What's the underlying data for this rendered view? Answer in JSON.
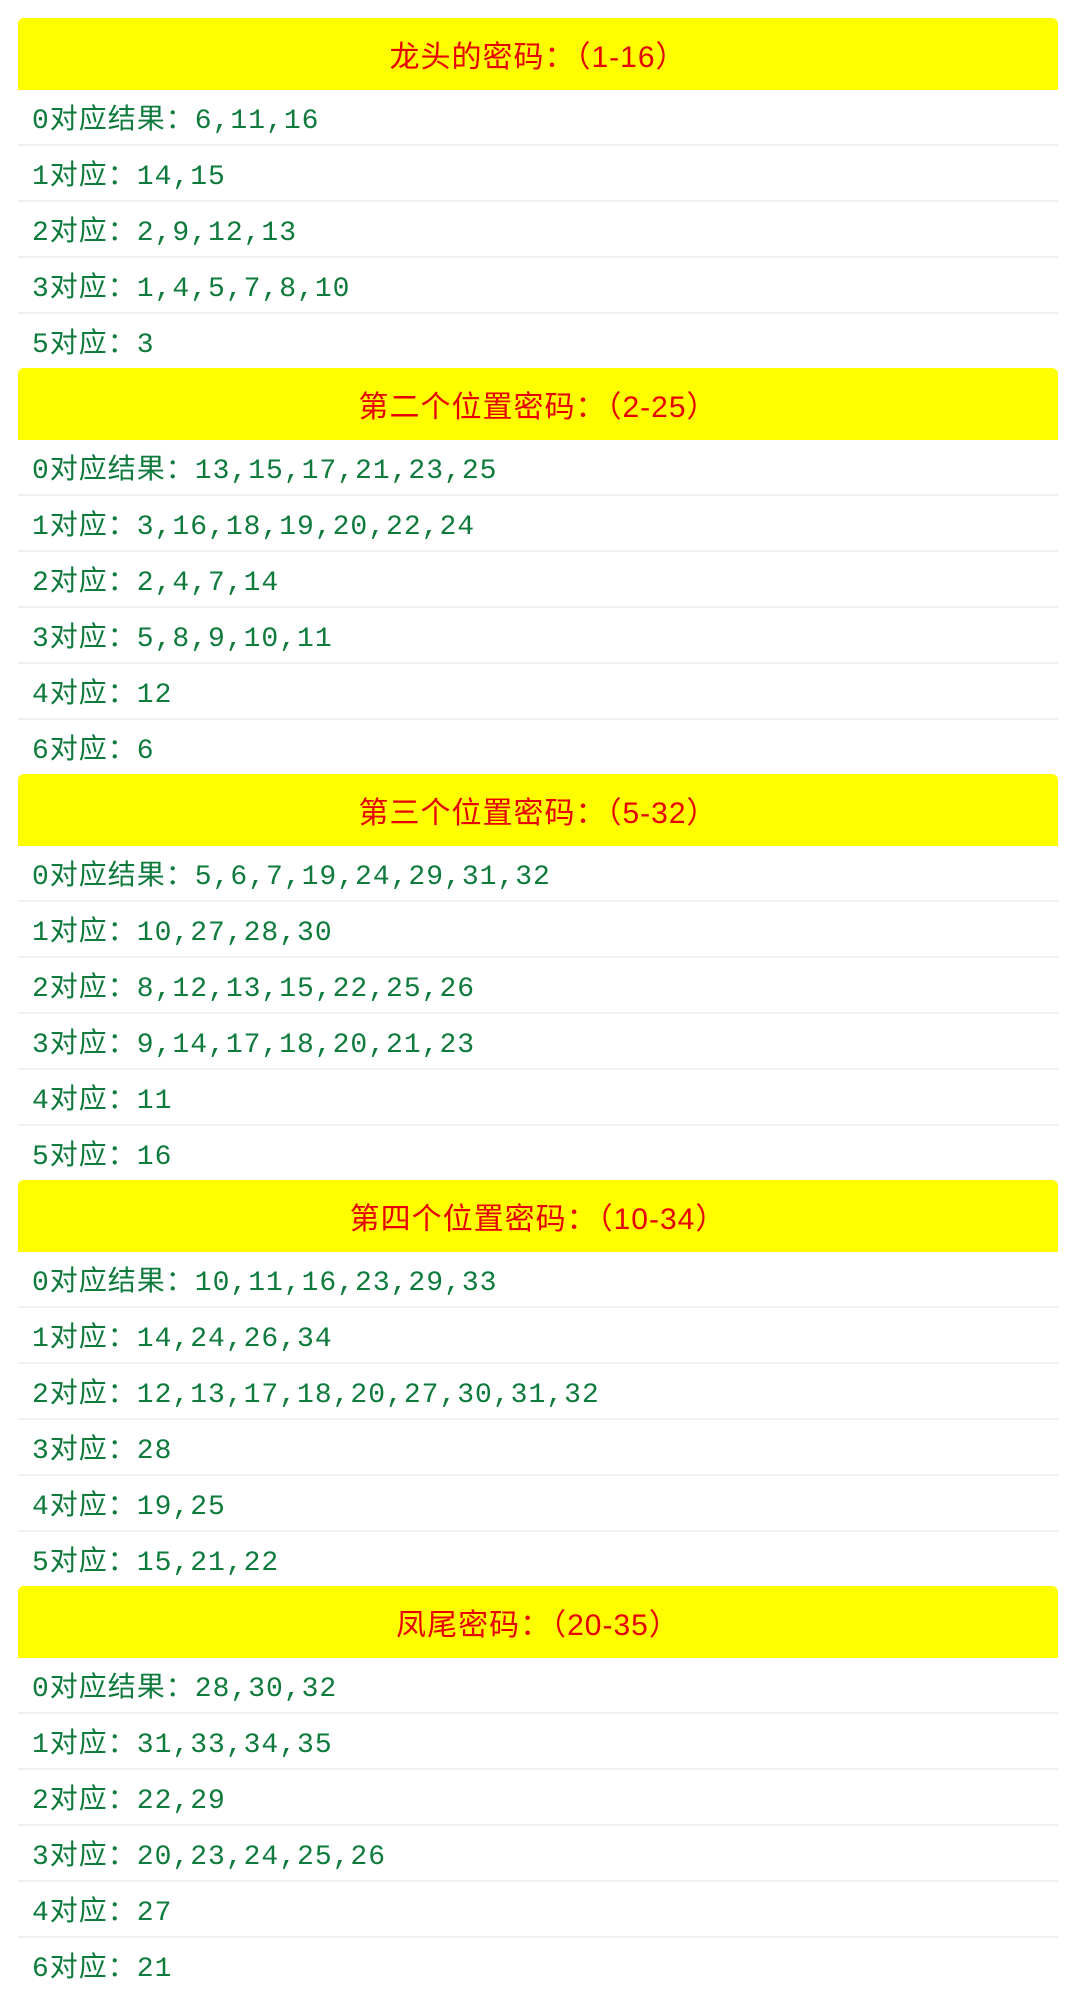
{
  "styling": {
    "header_bg": "#ffff00",
    "header_text_color": "#e60000",
    "row_text_color": "#0e7a3c",
    "row_bg": "#ffffff",
    "row_border_color": "#f0f0f0",
    "header_fontsize": 30,
    "row_fontsize": 28
  },
  "sections": [
    {
      "title": "龙头的密码：（1-16）",
      "rows": [
        "0对应结果：6,11,16",
        "1对应：14,15",
        "2对应：2,9,12,13",
        "3对应：1,4,5,7,8,10",
        "5对应：3"
      ]
    },
    {
      "title": "第二个位置密码：（2-25）",
      "rows": [
        "0对应结果：13,15,17,21,23,25",
        "1对应：3,16,18,19,20,22,24",
        "2对应：2,4,7,14",
        "3对应：5,8,9,10,11",
        "4对应：12",
        "6对应：6"
      ]
    },
    {
      "title": "第三个位置密码：（5-32）",
      "rows": [
        "0对应结果：5,6,7,19,24,29,31,32",
        "1对应：10,27,28,30",
        "2对应：8,12,13,15,22,25,26",
        "3对应：9,14,17,18,20,21,23",
        "4对应：11",
        "5对应：16"
      ]
    },
    {
      "title": "第四个位置密码：（10-34）",
      "rows": [
        "0对应结果：10,11,16,23,29,33",
        "1对应：14,24,26,34",
        "2对应：12,13,17,18,20,27,30,31,32",
        "3对应：28",
        "4对应：19,25",
        "5对应：15,21,22"
      ]
    },
    {
      "title": "凤尾密码：（20-35）",
      "rows": [
        "0对应结果：28,30,32",
        "1对应：31,33,34,35",
        "2对应：22,29",
        "3对应：20,23,24,25,26",
        "4对应：27",
        "6对应：21"
      ]
    }
  ]
}
